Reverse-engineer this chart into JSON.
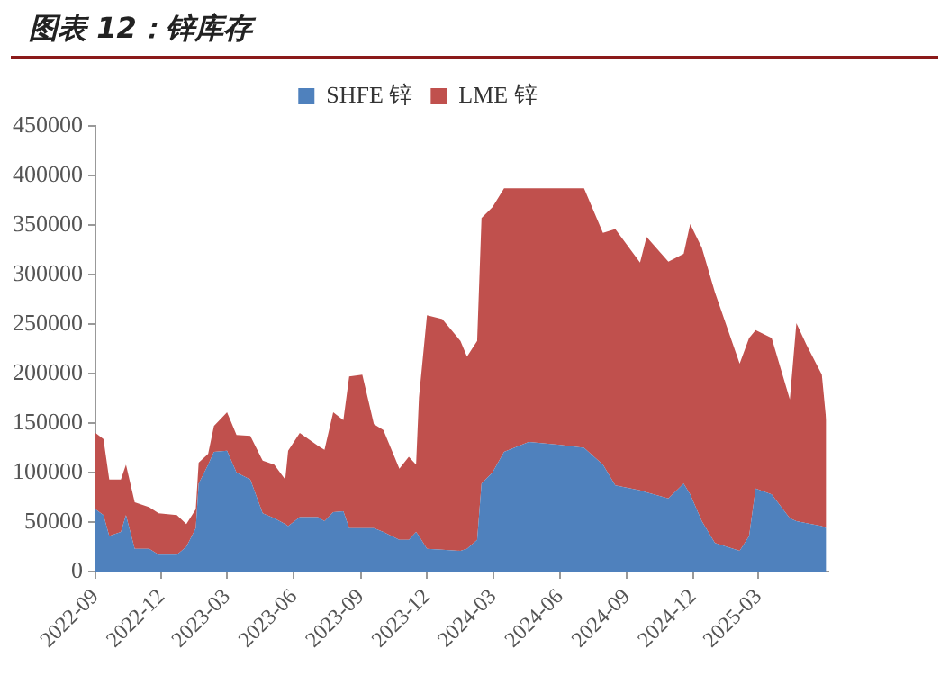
{
  "chart_data": {
    "type": "area",
    "title": "图表 12：锌库存",
    "stacked": true,
    "legend": "top",
    "x": [
      "2022-09-01",
      "2022-09-12",
      "2022-09-20",
      "2022-10-06",
      "2022-10-13",
      "2022-10-25",
      "2022-11-14",
      "2022-11-27",
      "2022-12-22",
      "2023-01-04",
      "2023-01-17",
      "2023-01-21",
      "2023-02-03",
      "2023-02-11",
      "2023-03-01",
      "2023-03-14",
      "2023-04-02",
      "2023-04-19",
      "2023-05-05",
      "2023-05-20",
      "2023-05-24",
      "2023-06-09",
      "2023-07-04",
      "2023-07-13",
      "2023-07-25",
      "2023-08-08",
      "2023-08-16",
      "2023-09-03",
      "2023-09-19",
      "2023-10-02",
      "2023-10-24",
      "2023-11-06",
      "2023-11-16",
      "2023-11-20",
      "2023-12-01",
      "2023-12-22",
      "2024-01-16",
      "2024-01-25",
      "2024-02-08",
      "2024-02-14",
      "2024-02-29",
      "2024-03-16",
      "2024-04-19",
      "2024-06-01",
      "2024-07-04",
      "2024-07-30",
      "2024-08-16",
      "2024-09-19",
      "2024-09-28",
      "2024-10-28",
      "2024-11-18",
      "2024-11-27",
      "2024-12-13",
      "2024-12-31",
      "2025-02-03",
      "2025-02-16",
      "2025-02-25",
      "2025-03-19",
      "2025-04-13",
      "2025-04-22",
      "2025-05-06",
      "2025-05-27",
      "2025-06-02"
    ],
    "series": [
      {
        "name": "SHFE 锌",
        "color": "#4f81bd",
        "values": [
          63000,
          57000,
          36000,
          40000,
          57000,
          23000,
          23000,
          17000,
          17000,
          25000,
          44000,
          89000,
          108000,
          121000,
          122000,
          100000,
          93000,
          59000,
          54000,
          48000,
          46000,
          55000,
          55000,
          51000,
          60000,
          61000,
          44000,
          44000,
          44000,
          40000,
          32000,
          32000,
          40000,
          36000,
          23000,
          22000,
          21000,
          23000,
          32000,
          89000,
          100000,
          121000,
          131000,
          128000,
          125000,
          108000,
          87000,
          82000,
          80000,
          74000,
          89000,
          78000,
          51000,
          29000,
          21000,
          36000,
          84000,
          78000,
          54000,
          51000,
          49000,
          46000,
          44000
        ]
      },
      {
        "name": "LME 锌",
        "color": "#c0504d",
        "values": [
          77000,
          77000,
          57000,
          53000,
          51000,
          47000,
          42000,
          42000,
          40000,
          23000,
          19000,
          21000,
          11000,
          26000,
          39000,
          38000,
          44000,
          53000,
          54000,
          45000,
          76000,
          85000,
          72000,
          72000,
          101000,
          92000,
          153000,
          155000,
          105000,
          103000,
          72000,
          84000,
          68000,
          140000,
          236000,
          233000,
          212000,
          194000,
          201000,
          268000,
          268000,
          266000,
          256000,
          259000,
          262000,
          234000,
          259000,
          230000,
          258000,
          239000,
          232000,
          273000,
          276000,
          253000,
          189000,
          200000,
          160000,
          158000,
          120000,
          200000,
          180000,
          153000,
          109000
        ]
      }
    ],
    "xlim": [
      "2022-09-01",
      "2025-06-05"
    ],
    "xticks": [
      {
        "value": "2022-09-01",
        "label": "2022-09"
      },
      {
        "value": "2022-12-01",
        "label": "2022-12"
      },
      {
        "value": "2023-03-01",
        "label": "2023-03"
      },
      {
        "value": "2023-06-01",
        "label": "2023-06"
      },
      {
        "value": "2023-09-01",
        "label": "2023-09"
      },
      {
        "value": "2023-12-01",
        "label": "2023-12"
      },
      {
        "value": "2024-03-01",
        "label": "2024-03"
      },
      {
        "value": "2024-06-01",
        "label": "2024-06"
      },
      {
        "value": "2024-09-01",
        "label": "2024-09"
      },
      {
        "value": "2024-12-01",
        "label": "2024-12"
      },
      {
        "value": "2025-03-01",
        "label": "2025-03"
      }
    ],
    "ylim": [
      0,
      450000
    ],
    "yticks": [
      0,
      50000,
      100000,
      150000,
      200000,
      250000,
      300000,
      350000,
      400000,
      450000
    ],
    "grid": false
  }
}
